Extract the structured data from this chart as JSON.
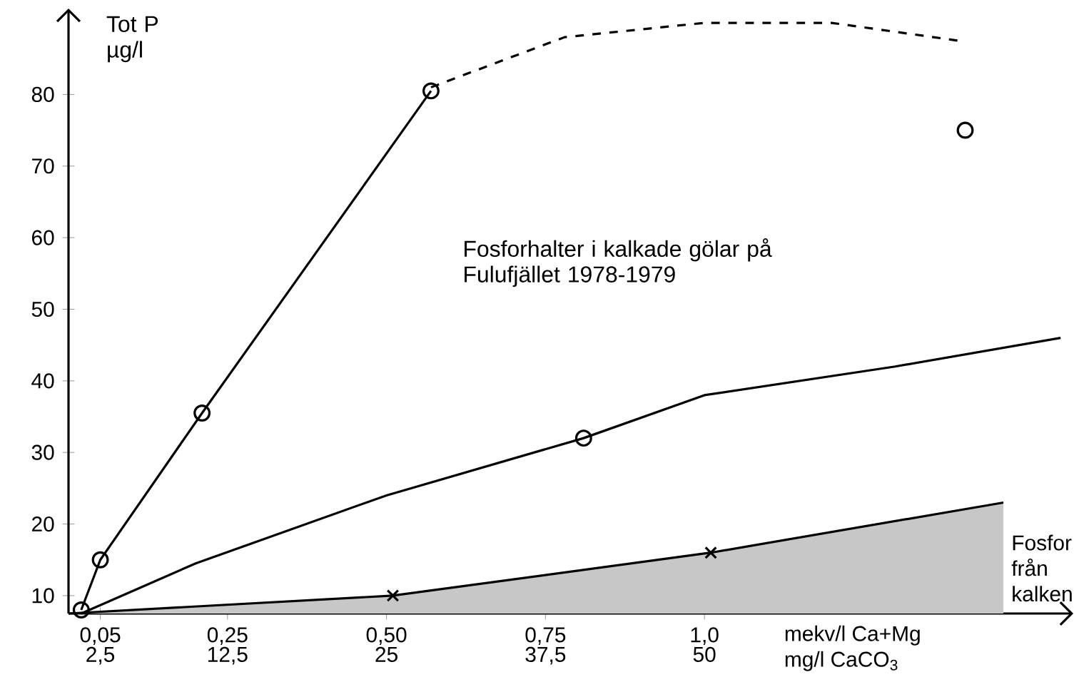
{
  "chart_data": {
    "type": "line",
    "title": "Fosforhalter i kalkade gölar på Fulufjället 1978-1979",
    "ylabel": "Tot P µg/l",
    "xlabel": "mekv/l Ca+Mg",
    "x2label": "mg/l CaCO$_{3}$",
    "xlim": [
      0,
      1.58
    ],
    "ylim": [
      7.5,
      92
    ],
    "xticks": [
      {
        "value": 0.05,
        "label": "0,05"
      },
      {
        "value": 0.25,
        "label": "0,25"
      },
      {
        "value": 0.5,
        "label": "0,50"
      },
      {
        "value": 0.75,
        "label": "0,75"
      },
      {
        "value": 1.0,
        "label": "1,0"
      }
    ],
    "x2lim": [
      0,
      79
    ],
    "x2ticks": [
      {
        "value": 2.5,
        "label": "2,5"
      },
      {
        "value": 12.5,
        "label": "12,5"
      },
      25,
      {
        "value": 37.5,
        "label": "37,5"
      },
      50
    ],
    "yticks": [
      10,
      20,
      30,
      40,
      50,
      60,
      70,
      80
    ],
    "annotations": [
      "Fosfor från kalken"
    ],
    "series": [
      {
        "color": "#000000",
        "x": [
          0.02,
          0.05,
          0.21,
          0.57
        ],
        "values": [
          8,
          15,
          35.5,
          80.5
        ]
      },
      {
        "color": "#000000",
        "line_style": "dashed",
        "x": [
          0.57,
          0.78,
          1.0,
          1.2,
          1.4
        ],
        "values": [
          81,
          88,
          90,
          90,
          87.5
        ]
      },
      {
        "color": "#000000",
        "x": [
          0.02,
          0.2,
          0.5,
          0.81,
          1.0,
          1.3,
          1.56
        ],
        "values": [
          7.5,
          14.5,
          24,
          32,
          38,
          42,
          46
        ]
      },
      {
        "type": "area",
        "color": "#000000",
        "x": [
          0,
          0.51,
          1.01,
          1.47
        ],
        "values": [
          7.5,
          10,
          16,
          23
        ]
      },
      {
        "type": "scatter",
        "color": "#000000",
        "marker": "circle",
        "x": [
          0.02,
          0.05,
          0.21,
          0.57,
          0.81,
          1.41
        ],
        "values": [
          8,
          15,
          35.5,
          80.5,
          32,
          75
        ]
      },
      {
        "type": "scatter",
        "color": "#000000",
        "marker": "cross",
        "x": [
          0.51,
          1.01
        ],
        "values": [
          10,
          16
        ]
      }
    ]
  }
}
